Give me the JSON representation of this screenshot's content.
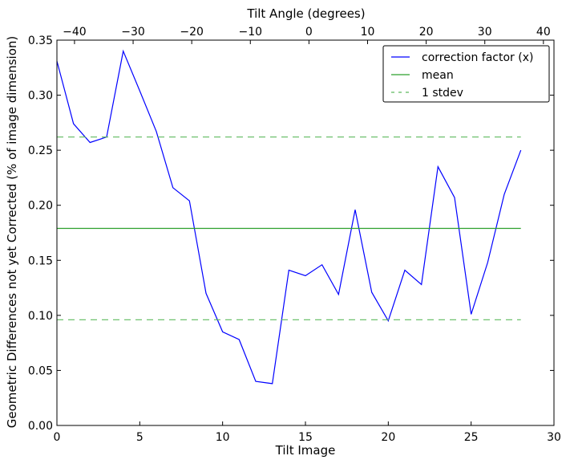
{
  "chart_data": {
    "type": "line",
    "title": "",
    "xlabel": "Tilt Image",
    "ylabel": "Geometric Differences not yet Corrected (% of image dimension)",
    "top_xlabel": "Tilt Angle (degrees)",
    "xlim": [
      0,
      30
    ],
    "ylim": [
      0,
      0.35
    ],
    "top_xlim": [
      -43,
      41.8
    ],
    "xticks": [
      0,
      5,
      10,
      15,
      20,
      25,
      30
    ],
    "xtick_labels": [
      "0",
      "5",
      "10",
      "15",
      "20",
      "25",
      "30"
    ],
    "yticks": [
      0,
      0.05,
      0.1,
      0.15,
      0.2,
      0.25,
      0.3,
      0.35
    ],
    "ytick_labels": [
      "0.00",
      "0.05",
      "0.10",
      "0.15",
      "0.20",
      "0.25",
      "0.30",
      "0.35"
    ],
    "top_xticks": [
      -40,
      -30,
      -20,
      -10,
      0,
      10,
      20,
      30,
      40
    ],
    "top_xtick_labels": [
      "−40",
      "−30",
      "−20",
      "−10",
      "0",
      "10",
      "20",
      "30",
      "40"
    ],
    "grid": false,
    "legend_position": "top-right",
    "series": [
      {
        "name": "correction factor (x)",
        "color": "#0000ff",
        "style": "solid",
        "x": [
          0,
          1,
          2,
          3,
          4,
          5,
          6,
          7,
          8,
          9,
          10,
          11,
          12,
          13,
          14,
          15,
          16,
          17,
          18,
          19,
          20,
          21,
          22,
          23,
          24,
          25,
          26,
          27,
          28
        ],
        "y": [
          0.331,
          0.274,
          0.257,
          0.262,
          0.34,
          0.304,
          0.267,
          0.216,
          0.204,
          0.12,
          0.085,
          0.078,
          0.04,
          0.038,
          0.141,
          0.136,
          0.146,
          0.119,
          0.196,
          0.121,
          0.095,
          0.141,
          0.128,
          0.235,
          0.207,
          0.101,
          0.148,
          0.21,
          0.25
        ]
      },
      {
        "name": "mean",
        "color": "#2ca02c",
        "style": "solid",
        "x": [
          0,
          28
        ],
        "y": [
          0.179,
          0.179
        ]
      },
      {
        "name": "1 stdev",
        "color": "#5fb95f",
        "style": "dashed",
        "x": [
          0,
          28
        ],
        "y": [
          0.262,
          0.262
        ],
        "y_lower": [
          0.096,
          0.096
        ]
      }
    ]
  }
}
